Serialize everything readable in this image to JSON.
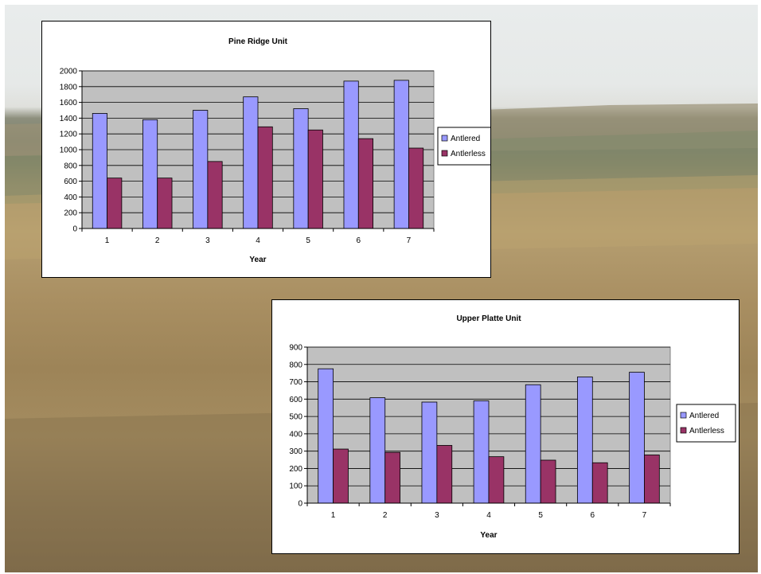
{
  "colors": {
    "antlered": "#9999ff",
    "antlerless": "#993366",
    "plot_bg": "#c0c0c0"
  },
  "chart_data": [
    {
      "type": "bar",
      "title": "Pine Ridge Unit",
      "xlabel": "Year",
      "ylabel": "",
      "categories": [
        "1",
        "2",
        "3",
        "4",
        "5",
        "6",
        "7"
      ],
      "ylim": [
        0,
        2000
      ],
      "yticks": [
        0,
        200,
        400,
        600,
        800,
        1000,
        1200,
        1400,
        1600,
        1800,
        2000
      ],
      "series": [
        {
          "name": "Antlered",
          "values": [
            1460,
            1380,
            1500,
            1670,
            1520,
            1870,
            1880
          ]
        },
        {
          "name": "Antlerless",
          "values": [
            640,
            640,
            850,
            1290,
            1250,
            1140,
            1020
          ]
        }
      ],
      "grid": true,
      "legend": "right"
    },
    {
      "type": "bar",
      "title": "Upper Platte Unit",
      "xlabel": "Year",
      "ylabel": "",
      "categories": [
        "1",
        "2",
        "3",
        "4",
        "5",
        "6",
        "7"
      ],
      "ylim": [
        0,
        900
      ],
      "yticks": [
        0,
        100,
        200,
        300,
        400,
        500,
        600,
        700,
        800,
        900
      ],
      "series": [
        {
          "name": "Antlered",
          "values": [
            775,
            608,
            583,
            590,
            683,
            728,
            755
          ]
        },
        {
          "name": "Antlerless",
          "values": [
            312,
            293,
            333,
            268,
            248,
            233,
            278
          ]
        }
      ],
      "grid": true,
      "legend": "right"
    }
  ]
}
